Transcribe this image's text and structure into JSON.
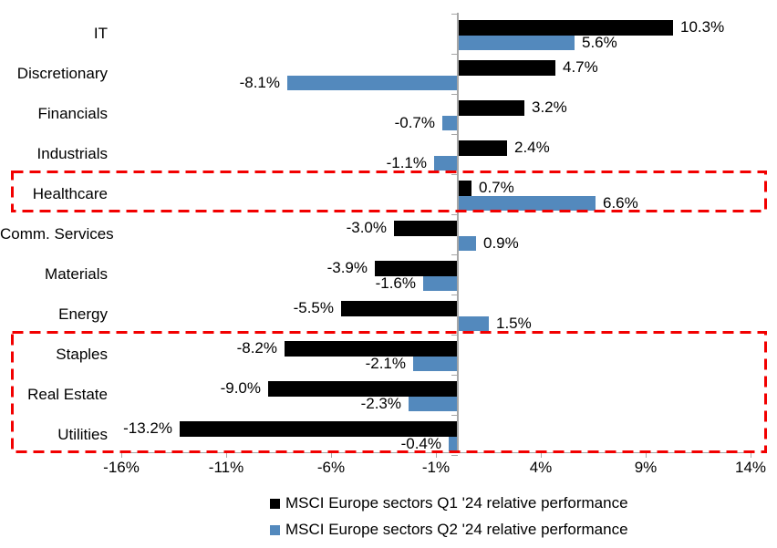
{
  "chart_data": {
    "type": "bar",
    "orientation": "horizontal",
    "title": "",
    "categories": [
      "IT",
      "Discretionary",
      "Financials",
      "Industrials",
      "Healthcare",
      "Comm. Services",
      "Materials",
      "Energy",
      "Staples",
      "Real Estate",
      "Utilities"
    ],
    "series": [
      {
        "name": "MSCI Europe sectors Q1 '24 relative performance",
        "color": "#000000",
        "values": [
          10.3,
          4.7,
          3.2,
          2.4,
          0.7,
          -3.0,
          -3.9,
          -5.5,
          -8.2,
          -9.0,
          -13.2
        ],
        "labels": [
          "10.3%",
          "4.7%",
          "3.2%",
          "2.4%",
          "0.7%",
          "-3.0%",
          "-3.9%",
          "-5.5%",
          "-8.2%",
          "-9.0%",
          "-13.2%"
        ]
      },
      {
        "name": "MSCI Europe sectors Q2 '24 relative performance",
        "color": "#5389BD",
        "values": [
          5.6,
          -8.1,
          -0.7,
          -1.1,
          6.6,
          0.9,
          -1.6,
          1.5,
          -2.1,
          -2.3,
          -0.4
        ],
        "labels": [
          "5.6%",
          "-8.1%",
          "-0.7%",
          "-1.1%",
          "6.6%",
          "0.9%",
          "-1.6%",
          "1.5%",
          "-2.1%",
          "-2.3%",
          "-0.4%"
        ]
      }
    ],
    "x_axis": {
      "unit": "%",
      "min": -16,
      "max": 14,
      "tick_step": 5,
      "ticks": [
        -16,
        -11,
        -6,
        -1,
        4,
        9,
        14
      ],
      "tick_labels": [
        "-16%",
        "-11%",
        "-6%",
        "-1%",
        "4%",
        "9%",
        "14%"
      ]
    },
    "grid": false,
    "legend_position": "bottom",
    "axis_color": "#a6a6a6",
    "annotations": {
      "highlight_color": "#F20000",
      "highlight_boxes": [
        {
          "categories": [
            "Healthcare"
          ],
          "style": "red-dashed"
        },
        {
          "categories": [
            "Staples",
            "Real Estate",
            "Utilities"
          ],
          "style": "red-dashed"
        }
      ]
    }
  }
}
